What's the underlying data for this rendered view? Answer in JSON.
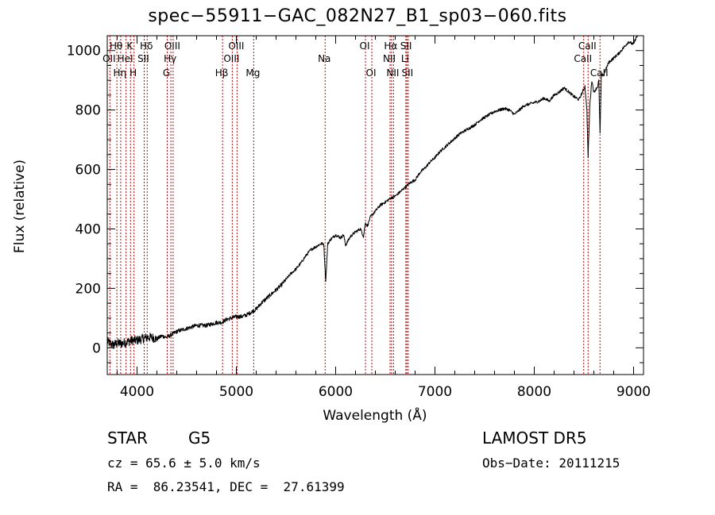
{
  "chart_data": {
    "type": "line",
    "title": "spec−55911−GAC_082N27_B1_sp03−060.fits",
    "xlabel": "Wavelength (Å)",
    "ylabel": "Flux (relative)",
    "xlim": [
      3700,
      9100
    ],
    "ylim": [
      -90,
      1050
    ],
    "xticks": [
      4000,
      5000,
      6000,
      7000,
      8000,
      9000
    ],
    "yticks": [
      0,
      200,
      400,
      600,
      800,
      1000
    ],
    "line_color": "#000000",
    "marker_color": "#cc0000",
    "series": [
      {
        "x": [
          3700,
          3760,
          3800,
          3850,
          3900,
          3950,
          4000,
          4050,
          4100,
          4150,
          4200,
          4250,
          4300,
          4350,
          4400,
          4450,
          4500,
          4550,
          4600,
          4650,
          4700,
          4750,
          4800,
          4850,
          4900,
          4950,
          5000,
          5050,
          5100,
          5150,
          5200,
          5250,
          5300,
          5350,
          5400,
          5450,
          5500,
          5550,
          5600,
          5650,
          5700,
          5750,
          5800,
          5850,
          5880,
          5900,
          5920,
          5950,
          6000,
          6050,
          6080,
          6100,
          6150,
          6200,
          6250,
          6280,
          6300,
          6320,
          6350,
          6400,
          6450,
          6500,
          6560,
          6600,
          6650,
          6700,
          6750,
          6800,
          6850,
          6900,
          6950,
          7000,
          7050,
          7100,
          7150,
          7200,
          7250,
          7300,
          7350,
          7400,
          7450,
          7500,
          7550,
          7600,
          7650,
          7700,
          7750,
          7800,
          7850,
          7900,
          7950,
          8000,
          8050,
          8100,
          8150,
          8200,
          8250,
          8300,
          8350,
          8400,
          8450,
          8498,
          8510,
          8530,
          8542,
          8560,
          8580,
          8600,
          8640,
          8650,
          8662,
          8675,
          8700,
          8750,
          8800,
          8850,
          8900,
          8950,
          9000,
          9020,
          9040,
          9060
        ],
        "y": [
          20,
          10,
          15,
          15,
          20,
          25,
          25,
          30,
          35,
          35,
          30,
          40,
          35,
          45,
          55,
          60,
          65,
          70,
          75,
          75,
          75,
          80,
          85,
          85,
          95,
          100,
          105,
          105,
          110,
          120,
          130,
          150,
          165,
          180,
          195,
          210,
          230,
          250,
          265,
          285,
          310,
          330,
          340,
          350,
          350,
          225,
          350,
          365,
          380,
          370,
          380,
          345,
          375,
          390,
          400,
          375,
          420,
          410,
          440,
          460,
          480,
          490,
          505,
          510,
          525,
          540,
          555,
          565,
          590,
          605,
          625,
          640,
          660,
          675,
          690,
          705,
          720,
          730,
          740,
          750,
          765,
          775,
          785,
          795,
          800,
          805,
          800,
          785,
          800,
          815,
          820,
          825,
          830,
          840,
          830,
          850,
          860,
          875,
          860,
          845,
          835,
          870,
          880,
          800,
          640,
          820,
          900,
          860,
          880,
          900,
          720,
          915,
          920,
          960,
          975,
          990,
          1010,
          1030,
          1020,
          1040,
          1050,
          1055
        ]
      }
    ],
    "markers": [
      {
        "x": 3727,
        "label": "OII",
        "row": 2
      },
      {
        "x": 3797,
        "label": "Hθ",
        "row": 1
      },
      {
        "x": 3835,
        "label": "Hη",
        "row": 3
      },
      {
        "x": 3889,
        "label": "HeI",
        "row": 2
      },
      {
        "x": 3934,
        "label": "K",
        "row": 1
      },
      {
        "x": 3969,
        "label": "H",
        "row": 3
      },
      {
        "x": 4072,
        "label": "SII",
        "row": 2
      },
      {
        "x": 4102,
        "label": "Hδ",
        "row": 1
      },
      {
        "x": 4304,
        "label": "G",
        "row": 3
      },
      {
        "x": 4341,
        "label": "Hγ",
        "row": 2
      },
      {
        "x": 4363,
        "label": "OIII",
        "row": 1
      },
      {
        "x": 4861,
        "label": "Hβ",
        "row": 3
      },
      {
        "x": 4959,
        "label": "OIII",
        "row": 2
      },
      {
        "x": 5007,
        "label": "OIII",
        "row": 1
      },
      {
        "x": 5175,
        "label": "Mg",
        "row": 3
      },
      {
        "x": 5894,
        "label": "Na",
        "row": 2
      },
      {
        "x": 6300,
        "label": "OI",
        "row": 1
      },
      {
        "x": 6364,
        "label": "OI",
        "row": 3
      },
      {
        "x": 6548,
        "label": "NII",
        "row": 2
      },
      {
        "x": 6563,
        "label": "Hα",
        "row": 1
      },
      {
        "x": 6583,
        "label": "NII",
        "row": 3
      },
      {
        "x": 6707,
        "label": "Li",
        "row": 2
      },
      {
        "x": 6717,
        "label": "SII",
        "row": 1
      },
      {
        "x": 6731,
        "label": "SII",
        "row": 3
      },
      {
        "x": 8498,
        "label": "CaII",
        "row": 2
      },
      {
        "x": 8542,
        "label": "CaII",
        "row": 1
      },
      {
        "x": 8662,
        "label": "CaII",
        "row": 3
      }
    ]
  },
  "info": {
    "object_class": "STAR",
    "subclass": "G5",
    "cz": "cz = 65.6 ± 5.0 km/s",
    "radec": "RA =  86.23541, DEC =  27.61399",
    "survey": "LAMOST DR5",
    "obs_date": "Obs−Date: 20111215"
  }
}
